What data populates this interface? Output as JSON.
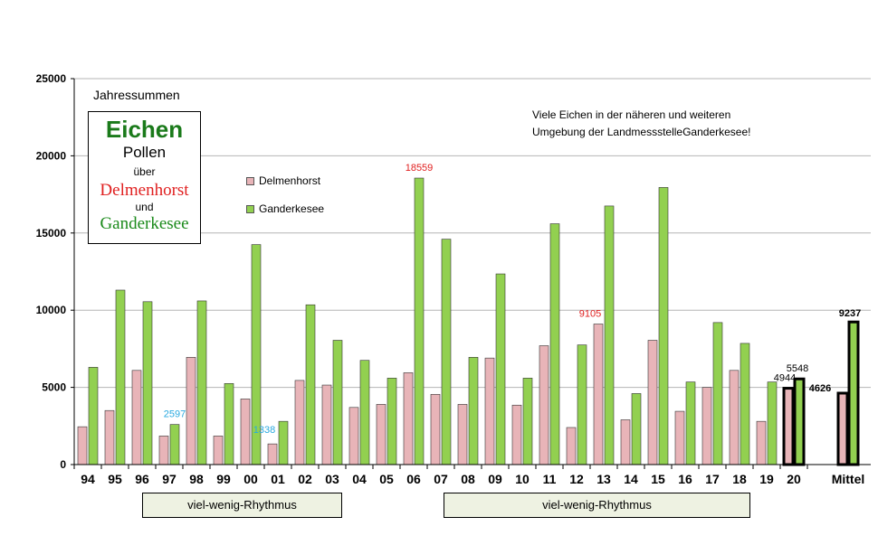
{
  "chart_data": {
    "type": "bar",
    "title": "Jahressummen",
    "categories": [
      "94",
      "95",
      "96",
      "97",
      "98",
      "99",
      "00",
      "01",
      "02",
      "03",
      "04",
      "05",
      "06",
      "07",
      "08",
      "09",
      "10",
      "11",
      "12",
      "13",
      "14",
      "15",
      "16",
      "17",
      "18",
      "19",
      "20",
      "Mittel"
    ],
    "series": [
      {
        "name": "Delmenhorst",
        "color": "#e8b4b8",
        "values": [
          2450,
          3500,
          6100,
          1850,
          6950,
          1850,
          4250,
          1338,
          5450,
          5150,
          3700,
          3900,
          5950,
          4550,
          3900,
          6900,
          3850,
          7700,
          2400,
          9105,
          2900,
          8050,
          3450,
          5000,
          6100,
          2800,
          4944,
          4626
        ]
      },
      {
        "name": "Ganderkesee",
        "color": "#92d050",
        "values": [
          6300,
          11300,
          10550,
          2597,
          10600,
          5250,
          14250,
          2800,
          10350,
          8050,
          6750,
          5600,
          18559,
          14600,
          6950,
          12350,
          5600,
          15600,
          7750,
          16750,
          4600,
          17950,
          5350,
          9200,
          7850,
          5350,
          5548,
          9237
        ]
      }
    ],
    "ylim": [
      0,
      25000
    ],
    "yticks": [
      0,
      5000,
      10000,
      15000,
      20000,
      25000
    ],
    "annotations": [
      {
        "text": "2597",
        "category": "97",
        "series": 1,
        "color": "#29a9e0",
        "bold": false
      },
      {
        "text": "1338",
        "category": "01",
        "series": 0,
        "color": "#29a9e0",
        "bold": false
      },
      {
        "text": "18559",
        "category": "06",
        "series": 1,
        "color": "#e02020",
        "bold": false
      },
      {
        "text": "9105",
        "category": "13",
        "series": 0,
        "color": "#e02020",
        "bold": false
      },
      {
        "text": "4944",
        "category": "20",
        "series": 0,
        "color": "#000000",
        "bold": false
      },
      {
        "text": "5548",
        "category": "20",
        "series": 1,
        "color": "#000000",
        "bold": false
      },
      {
        "text": "4626",
        "category": "Mittel",
        "series": 0,
        "color": "#000000",
        "bold": true
      },
      {
        "text": "9237",
        "category": "Mittel",
        "series": 1,
        "color": "#000000",
        "bold": true
      }
    ],
    "highlighted_categories": [
      "20",
      "Mittel"
    ],
    "xlabel": "",
    "ylabel": ""
  },
  "legend_box": {
    "title": "Eichen",
    "line2": "Pollen",
    "line3": "über",
    "city1": "Delmenhorst",
    "line5": "und",
    "city2": "Ganderkesee"
  },
  "note": {
    "line1": "Viele Eichen in der näheren und weiteren",
    "line2": "Umgebung der LandmessstelleGanderkesee!"
  },
  "rhythm_labels": [
    "viel-wenig-Rhythmus",
    "viel-wenig-Rhythmus"
  ]
}
